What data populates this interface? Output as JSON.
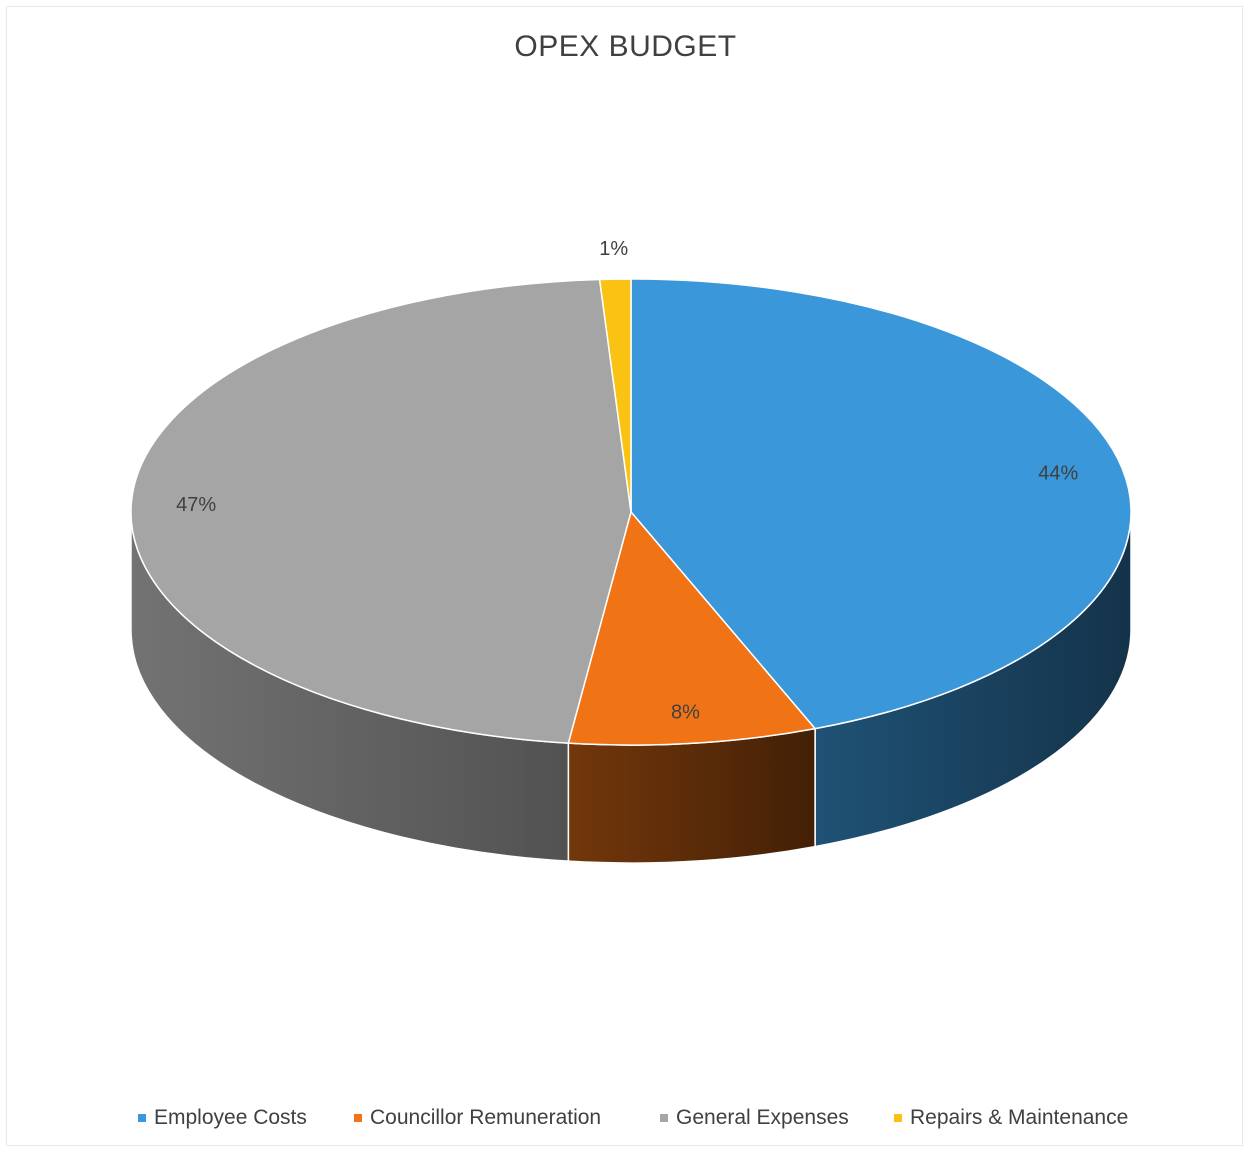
{
  "chart_data": {
    "type": "pie",
    "style": "3d",
    "title": "OPEX BUDGET",
    "categories": [
      "Employee Costs",
      "Councillor Remuneration",
      "General Expenses",
      "Repairs & Maintenance"
    ],
    "values": [
      44,
      8,
      47,
      1
    ],
    "data_labels": [
      "44%",
      "8%",
      "47%",
      "1%"
    ],
    "colors": [
      "#3a97d9",
      "#f07316",
      "#a5a5a5",
      "#fac314"
    ],
    "legend_position": "bottom"
  }
}
